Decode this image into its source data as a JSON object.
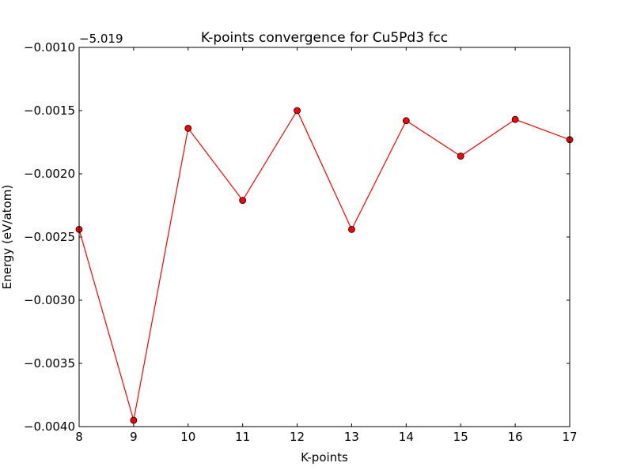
{
  "chart_data": {
    "type": "line",
    "title": "K-points convergence for Cu5Pd3 fcc",
    "xlabel": "K-points",
    "ylabel": "Energy (eV/atom)",
    "offset_label": "−5.019",
    "x": [
      8,
      9,
      10,
      11,
      12,
      13,
      14,
      15,
      16,
      17
    ],
    "y": [
      -0.00244,
      -0.00395,
      -0.00164,
      -0.00221,
      -0.0015,
      -0.00244,
      -0.00158,
      -0.00186,
      -0.00157,
      -0.00173
    ],
    "xlim": [
      8,
      17
    ],
    "ylim": [
      -0.004,
      -0.001
    ],
    "xticks": [
      8,
      9,
      10,
      11,
      12,
      13,
      14,
      15,
      16,
      17
    ],
    "xtick_labels": [
      "8",
      "9",
      "10",
      "11",
      "12",
      "13",
      "14",
      "15",
      "16",
      "17"
    ],
    "yticks": [
      -0.004,
      -0.0035,
      -0.003,
      -0.0025,
      -0.002,
      -0.0015,
      -0.001
    ],
    "ytick_labels": [
      "−0.0040",
      "−0.0035",
      "−0.0030",
      "−0.0025",
      "−0.0020",
      "−0.0015",
      "−0.0010"
    ],
    "grid": false,
    "series": [
      {
        "line_color": "#ff0000",
        "marker_color": "#ff0000",
        "marker": "circle"
      }
    ]
  }
}
